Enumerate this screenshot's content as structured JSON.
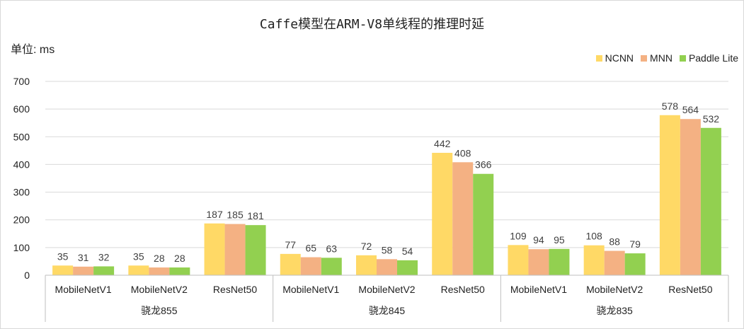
{
  "chart_data": {
    "type": "bar",
    "title": "Caffe模型在ARM-V8单线程的推理时延",
    "unit_label": "单位: ms",
    "groups": [
      {
        "name": "骁龙855",
        "categories": [
          "MobileNetV1",
          "MobileNetV2",
          "ResNet50"
        ]
      },
      {
        "name": "骁龙845",
        "categories": [
          "MobileNetV1",
          "MobileNetV2",
          "ResNet50"
        ]
      },
      {
        "name": "骁龙835",
        "categories": [
          "MobileNetV1",
          "MobileNetV2",
          "ResNet50"
        ]
      }
    ],
    "series": [
      {
        "name": "NCNN",
        "color": "#ffd966",
        "values": [
          35,
          35,
          187,
          77,
          72,
          442,
          109,
          108,
          578
        ]
      },
      {
        "name": "MNN",
        "color": "#f4b183",
        "values": [
          31,
          28,
          185,
          65,
          58,
          408,
          94,
          88,
          564
        ]
      },
      {
        "name": "Paddle Lite",
        "color": "#92d050",
        "values": [
          32,
          28,
          181,
          63,
          54,
          366,
          95,
          79,
          532
        ]
      }
    ],
    "ylim": [
      0,
      700
    ],
    "yticks": [
      0,
      100,
      200,
      300,
      400,
      500,
      600,
      700
    ],
    "grid": true,
    "legend_position": "top-right"
  }
}
